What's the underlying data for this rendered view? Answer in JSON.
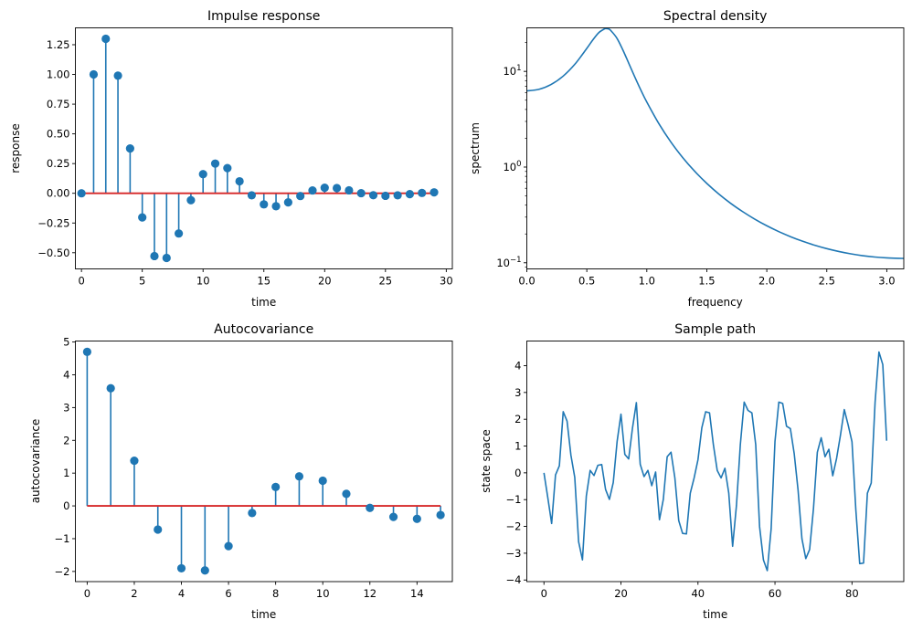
{
  "figure": {
    "colors": {
      "series": "#1f77b4",
      "baseline": "#d62728",
      "axes": "#000000"
    }
  },
  "chart_data": [
    {
      "id": "impulse",
      "type": "stem",
      "title": "Impulse response",
      "xlabel": "time",
      "ylabel": "response",
      "xlim": [
        -0.5,
        30.5
      ],
      "ylim": [
        -0.636,
        1.392
      ],
      "xticks": [
        0,
        5,
        10,
        15,
        20,
        25,
        30
      ],
      "xtick_labels": [
        "0",
        "5",
        "10",
        "15",
        "20",
        "25",
        "30"
      ],
      "yticks": [
        -0.5,
        -0.25,
        0,
        0.25,
        0.5,
        0.75,
        1.0,
        1.25
      ],
      "ytick_labels": [
        "−0.50",
        "−0.25",
        "0.00",
        "0.25",
        "0.50",
        "0.75",
        "1.00",
        "1.25"
      ],
      "grid": false,
      "x": [
        0,
        1,
        2,
        3,
        4,
        5,
        6,
        7,
        8,
        9,
        10,
        11,
        12,
        13,
        14,
        15,
        16,
        17,
        18,
        19,
        20,
        21,
        22,
        23,
        24,
        25,
        26,
        27,
        28,
        29
      ],
      "values": [
        0.0,
        1.0,
        1.3,
        0.99,
        0.377,
        -0.203,
        -0.528,
        -0.544,
        -0.338,
        -0.058,
        0.161,
        0.25,
        0.212,
        0.101,
        -0.017,
        -0.093,
        -0.109,
        -0.076,
        -0.023,
        0.024,
        0.047,
        0.044,
        0.025,
        0.001,
        -0.016,
        -0.021,
        -0.017,
        -0.007,
        0.003,
        0.008
      ],
      "baseline": 0
    },
    {
      "id": "spectral",
      "type": "line",
      "yscale": "log",
      "title": "Spectral density",
      "xlabel": "frequency",
      "ylabel": "spectrum",
      "xlim": [
        0,
        3.1416
      ],
      "ylim": [
        0.0863,
        28.5
      ],
      "xticks": [
        0,
        0.5,
        1.0,
        1.5,
        2.0,
        2.5,
        3.0
      ],
      "xtick_labels": [
        "0.0",
        "0.5",
        "1.0",
        "1.5",
        "2.0",
        "2.5",
        "3.0"
      ],
      "yticks": [
        0.1,
        1,
        10
      ],
      "ytick_labels": [
        {
          "base": "10",
          "exp": "−1"
        },
        {
          "base": "10",
          "exp": "0"
        },
        {
          "base": "10",
          "exp": "1"
        }
      ],
      "grid": false,
      "x": [
        0,
        0.1,
        0.2,
        0.3,
        0.4,
        0.5,
        0.55,
        0.6,
        0.65,
        0.66,
        0.68,
        0.7,
        0.75,
        0.8,
        0.85,
        0.9,
        0.95,
        1.0,
        1.1,
        1.2,
        1.3,
        1.4,
        1.5,
        1.6,
        1.7,
        1.8,
        1.9,
        2.0,
        2.1,
        2.2,
        2.3,
        2.4,
        2.5,
        2.6,
        2.7,
        2.8,
        2.9,
        3.0,
        3.1,
        3.1416
      ],
      "values": [
        6.25,
        6.485,
        7.27,
        8.86,
        11.86,
        17.39,
        21.3,
        25.4,
        27.9,
        28.0,
        27.8,
        26.7,
        22.3,
        16.78,
        12.12,
        8.74,
        6.39,
        4.78,
        2.85,
        1.831,
        1.253,
        0.901,
        0.675,
        0.523,
        0.417,
        0.3415,
        0.2856,
        0.2436,
        0.2116,
        0.1869,
        0.1676,
        0.1524,
        0.1405,
        0.1312,
        0.124,
        0.1186,
        0.1148,
        0.1124,
        0.1112,
        0.1111
      ]
    },
    {
      "id": "autocov",
      "type": "stem",
      "title": "Autocovariance",
      "xlabel": "time",
      "ylabel": "autocovariance",
      "xlim": [
        -0.5,
        15.5
      ],
      "ylim": [
        -2.31,
        5.03
      ],
      "xticks": [
        0,
        2,
        4,
        6,
        8,
        10,
        12,
        14
      ],
      "xtick_labels": [
        "0",
        "2",
        "4",
        "6",
        "8",
        "10",
        "12",
        "14"
      ],
      "yticks": [
        -2,
        -1,
        0,
        1,
        2,
        3,
        4,
        5
      ],
      "ytick_labels": [
        "−2",
        "−1",
        "0",
        "1",
        "2",
        "3",
        "4",
        "5"
      ],
      "grid": false,
      "x": [
        0,
        1,
        2,
        3,
        4,
        5,
        6,
        7,
        8,
        9,
        10,
        11,
        12,
        13,
        14,
        15
      ],
      "values": [
        4.7,
        3.59,
        1.377,
        -0.723,
        -1.904,
        -1.969,
        -1.227,
        -0.217,
        0.577,
        0.902,
        0.769,
        0.368,
        -0.06,
        -0.336,
        -0.395,
        -0.278
      ],
      "baseline": 0
    },
    {
      "id": "sample",
      "type": "line",
      "title": "Sample path",
      "xlabel": "time",
      "ylabel": "state space",
      "xlim": [
        -4.45,
        93.45
      ],
      "ylim": [
        -4.06,
        4.92
      ],
      "xticks": [
        0,
        20,
        40,
        60,
        80
      ],
      "xtick_labels": [
        "0",
        "20",
        "40",
        "60",
        "80"
      ],
      "yticks": [
        -4,
        -3,
        -2,
        -1,
        0,
        1,
        2,
        3,
        4
      ],
      "ytick_labels": [
        "−4",
        "−3",
        "−2",
        "−1",
        "0",
        "1",
        "2",
        "3",
        "4"
      ],
      "grid": false,
      "x_start": 0,
      "values": [
        0.0,
        -0.93,
        -1.89,
        -0.08,
        0.26,
        2.28,
        1.93,
        0.66,
        -0.17,
        -2.57,
        -3.25,
        -0.87,
        0.09,
        -0.1,
        0.28,
        0.31,
        -0.62,
        -0.99,
        -0.36,
        1.17,
        2.19,
        0.69,
        0.52,
        1.68,
        2.62,
        0.32,
        -0.14,
        0.09,
        -0.48,
        0.03,
        -1.75,
        -0.99,
        0.6,
        0.77,
        -0.19,
        -1.78,
        -2.26,
        -2.28,
        -0.76,
        -0.19,
        0.49,
        1.68,
        2.28,
        2.24,
        1.05,
        0.09,
        -0.19,
        0.17,
        -0.76,
        -2.74,
        -1.21,
        1.05,
        2.64,
        2.33,
        2.24,
        1.05,
        -2.01,
        -3.25,
        -3.65,
        -2.1,
        1.17,
        2.64,
        2.59,
        1.74,
        1.65,
        0.71,
        -0.65,
        -2.46,
        -3.2,
        -2.86,
        -1.33,
        0.77,
        1.31,
        0.6,
        0.88,
        -0.11,
        0.54,
        1.4,
        2.36,
        1.79,
        1.16,
        -1.38,
        -3.39,
        -3.37,
        -0.76,
        -0.38,
        2.64,
        4.51,
        4.04,
        1.2
      ]
    }
  ]
}
